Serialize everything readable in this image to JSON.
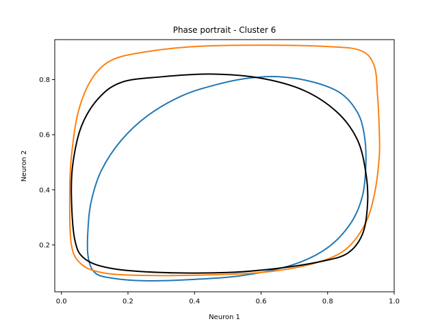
{
  "chart_data": {
    "type": "line",
    "title": "Phase portrait - Cluster 6",
    "xlabel": "Neuron 1",
    "ylabel": "Neuron 2",
    "xlim": [
      -0.02,
      1.0
    ],
    "ylim": [
      0.03,
      0.945
    ],
    "xticks": [
      0.0,
      0.2,
      0.4,
      0.6,
      0.8,
      1.0
    ],
    "xtick_labels": [
      "0.0",
      "0.2",
      "0.4",
      "0.6",
      "0.8",
      "1.0"
    ],
    "yticks": [
      0.2,
      0.4,
      0.6,
      0.8
    ],
    "ytick_labels": [
      "0.2",
      "0.4",
      "0.6",
      "0.8"
    ],
    "grid": false,
    "legend": "none",
    "series": [
      {
        "color": "#1f77b4",
        "points": [
          [
            0.08,
            0.16
          ],
          [
            0.1,
            0.1
          ],
          [
            0.15,
            0.08
          ],
          [
            0.25,
            0.07
          ],
          [
            0.4,
            0.075
          ],
          [
            0.55,
            0.09
          ],
          [
            0.7,
            0.13
          ],
          [
            0.8,
            0.19
          ],
          [
            0.87,
            0.28
          ],
          [
            0.905,
            0.38
          ],
          [
            0.915,
            0.5
          ],
          [
            0.91,
            0.6
          ],
          [
            0.89,
            0.68
          ],
          [
            0.84,
            0.75
          ],
          [
            0.76,
            0.79
          ],
          [
            0.66,
            0.81
          ],
          [
            0.56,
            0.805
          ],
          [
            0.46,
            0.78
          ],
          [
            0.36,
            0.74
          ],
          [
            0.26,
            0.67
          ],
          [
            0.18,
            0.58
          ],
          [
            0.12,
            0.47
          ],
          [
            0.09,
            0.36
          ],
          [
            0.08,
            0.26
          ],
          [
            0.08,
            0.16
          ]
        ]
      },
      {
        "color": "#ff7f0e",
        "points": [
          [
            0.03,
            0.2
          ],
          [
            0.06,
            0.13
          ],
          [
            0.12,
            0.1
          ],
          [
            0.22,
            0.09
          ],
          [
            0.4,
            0.09
          ],
          [
            0.6,
            0.1
          ],
          [
            0.75,
            0.13
          ],
          [
            0.85,
            0.18
          ],
          [
            0.91,
            0.27
          ],
          [
            0.94,
            0.38
          ],
          [
            0.955,
            0.52
          ],
          [
            0.955,
            0.62
          ],
          [
            0.95,
            0.74
          ],
          [
            0.94,
            0.85
          ],
          [
            0.9,
            0.905
          ],
          [
            0.8,
            0.92
          ],
          [
            0.6,
            0.925
          ],
          [
            0.4,
            0.92
          ],
          [
            0.25,
            0.9
          ],
          [
            0.15,
            0.87
          ],
          [
            0.09,
            0.8
          ],
          [
            0.05,
            0.68
          ],
          [
            0.03,
            0.52
          ],
          [
            0.025,
            0.38
          ],
          [
            0.03,
            0.2
          ]
        ]
      },
      {
        "color": "#000000",
        "points": [
          [
            0.04,
            0.22
          ],
          [
            0.07,
            0.15
          ],
          [
            0.15,
            0.115
          ],
          [
            0.3,
            0.1
          ],
          [
            0.5,
            0.1
          ],
          [
            0.65,
            0.115
          ],
          [
            0.78,
            0.14
          ],
          [
            0.86,
            0.17
          ],
          [
            0.905,
            0.24
          ],
          [
            0.92,
            0.35
          ],
          [
            0.915,
            0.46
          ],
          [
            0.89,
            0.58
          ],
          [
            0.83,
            0.68
          ],
          [
            0.73,
            0.76
          ],
          [
            0.6,
            0.805
          ],
          [
            0.45,
            0.82
          ],
          [
            0.3,
            0.81
          ],
          [
            0.18,
            0.79
          ],
          [
            0.11,
            0.73
          ],
          [
            0.06,
            0.63
          ],
          [
            0.035,
            0.5
          ],
          [
            0.03,
            0.38
          ],
          [
            0.04,
            0.22
          ]
        ]
      }
    ]
  }
}
